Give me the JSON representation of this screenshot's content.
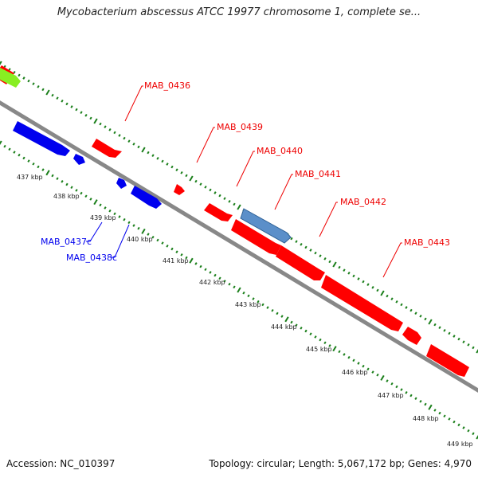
{
  "title": "Mycobacterium abscessus ATCC 19977 chromosome 1, complete se...",
  "footer": {
    "accession": "Accession: NC_010397",
    "summary": "Topology: circular; Length: 5,067,172 bp; Genes: 4,970"
  },
  "colors": {
    "forward": "#ff0000",
    "reverse": "#0000ee",
    "highlight": "#5b8fc9",
    "other": "#88ee22",
    "tick": "#1a7f1a",
    "backbone": "#888888"
  },
  "ruler_labels": [
    "437 kbp",
    "438 kbp",
    "439 kbp",
    "440 kbp",
    "441 kbp",
    "442 kbp",
    "443 kbp",
    "444 kbp",
    "445 kbp",
    "446 kbp",
    "447 kbp",
    "448 kbp",
    "449 kbp"
  ],
  "gene_labels": [
    {
      "name": "MAB_0436",
      "strand": "forward"
    },
    {
      "name": "MAB_0439",
      "strand": "forward"
    },
    {
      "name": "MAB_0440",
      "strand": "forward"
    },
    {
      "name": "MAB_0441",
      "strand": "forward"
    },
    {
      "name": "MAB_0442",
      "strand": "forward"
    },
    {
      "name": "MAB_0443",
      "strand": "forward"
    },
    {
      "name": "MAB_0437c",
      "strand": "reverse"
    },
    {
      "name": "MAB_0438c",
      "strand": "reverse"
    }
  ]
}
